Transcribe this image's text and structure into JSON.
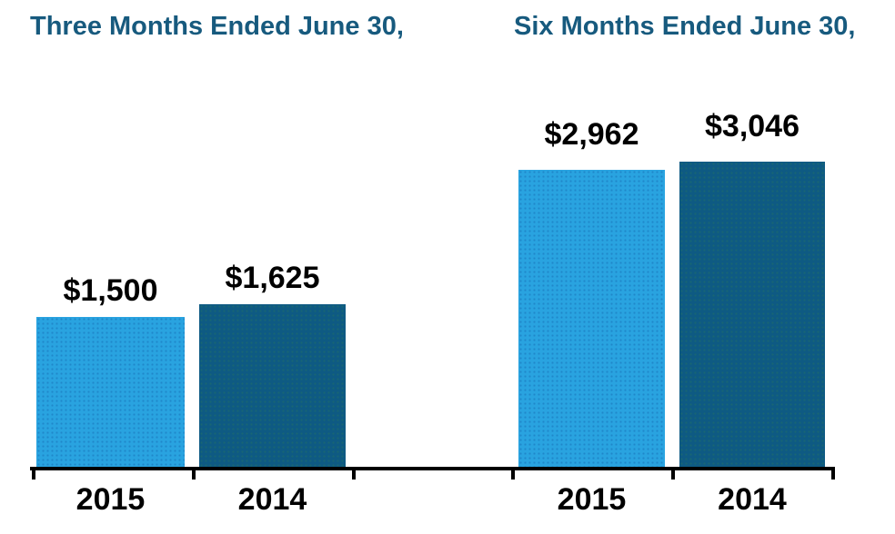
{
  "chart_data": {
    "type": "bar",
    "categories": [
      "Three Months Ended June 30,",
      "Six Months Ended June 30,"
    ],
    "series": [
      {
        "name": "2015",
        "values": [
          1500,
          2962
        ],
        "labels": [
          "$1,500",
          "$2,962"
        ],
        "color": "#29A3E0"
      },
      {
        "name": "2014",
        "values": [
          1625,
          3046
        ],
        "labels": [
          "$1,625",
          "$3,046"
        ],
        "color": "#0E5A83"
      }
    ],
    "x_tick_labels": [
      "2015",
      "2014",
      "2015",
      "2014"
    ],
    "value_prefix": "$",
    "ylim": [
      0,
      3400
    ],
    "grid": false,
    "legend": "none",
    "title_color": "#175A7E",
    "value_label_color": "#000000",
    "category_label_color": "#000000",
    "axis_color": "#000000",
    "axis_tick_count": 6
  }
}
